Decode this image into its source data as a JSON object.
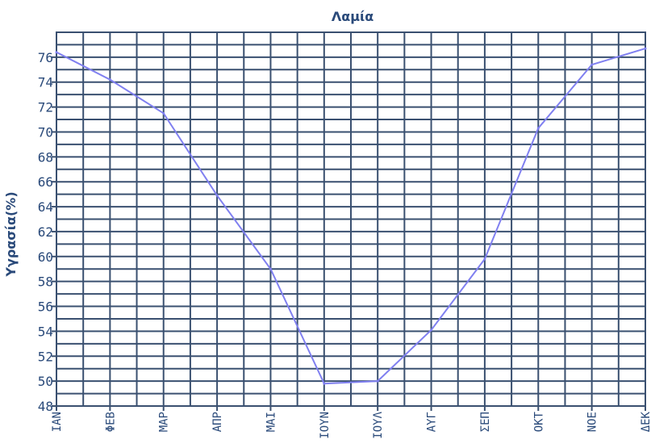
{
  "chart_data": {
    "type": "line",
    "title": "Λαμία",
    "xlabel": "",
    "ylabel": "Υγρασία(%)",
    "categories": [
      "ΙΑΝ",
      "ΦΕΒ",
      "ΜΑΡ",
      "ΑΠΡ",
      "ΜΑΙ",
      "ΙΟΥΝ",
      "ΙΟΥΛ",
      "ΑΥΓ",
      "ΣΕΠ",
      "ΟΚΤ",
      "ΝΟΕ",
      "ΔΕΚ"
    ],
    "series": [
      {
        "values": [
          76.4,
          74.2,
          71.5,
          64.9,
          59.0,
          49.8,
          50.0,
          54.1,
          59.8,
          70.3,
          75.4,
          76.7
        ]
      }
    ],
    "ylim": [
      48,
      78
    ],
    "yticks": [
      48,
      50,
      52,
      54,
      56,
      58,
      60,
      62,
      64,
      66,
      68,
      70,
      72,
      74,
      76
    ],
    "grid": true,
    "colors": {
      "line": "#8080f0",
      "grid": "#3a5070",
      "text": "#2a4a7a"
    }
  }
}
